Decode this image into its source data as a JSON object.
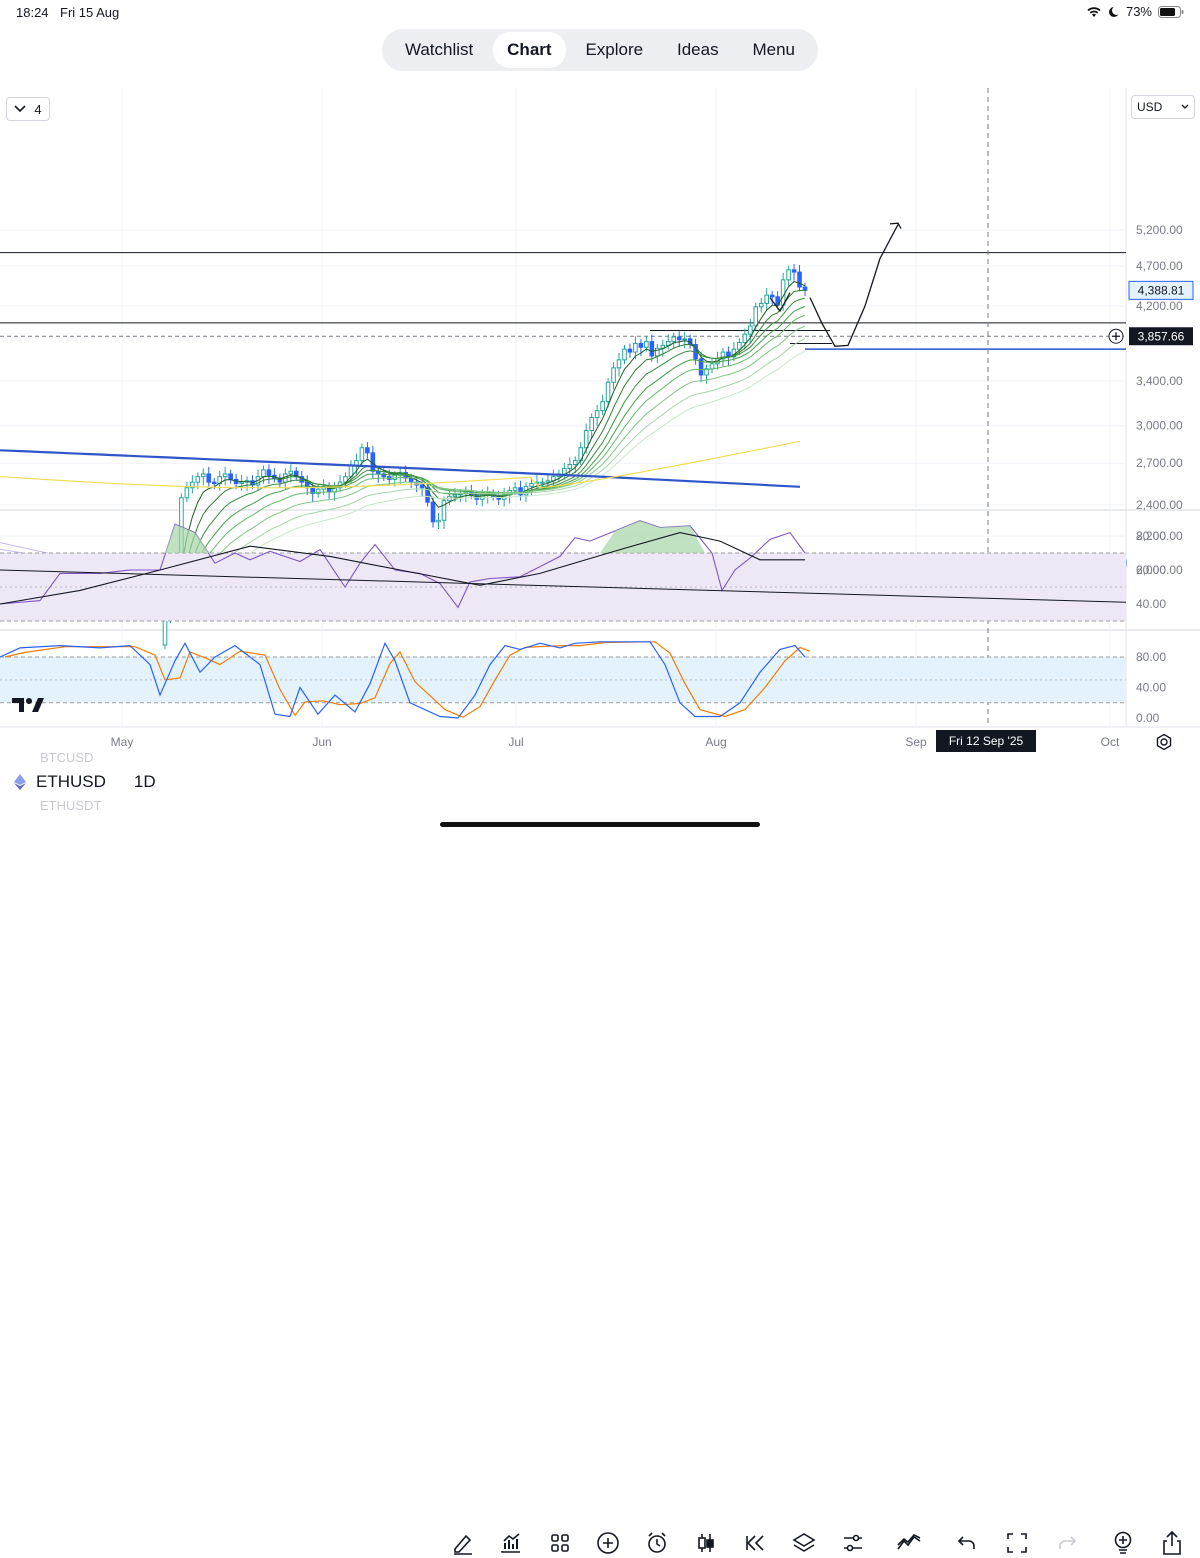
{
  "status_bar": {
    "time": "18:24",
    "date": "Fri 15 Aug",
    "battery": "73%"
  },
  "nav": {
    "tabs": [
      {
        "label": "Watchlist",
        "active": false
      },
      {
        "label": "Chart",
        "active": true
      },
      {
        "label": "Explore",
        "active": false
      },
      {
        "label": "Ideas",
        "active": false
      },
      {
        "label": "Menu",
        "active": false
      }
    ]
  },
  "chart_header": {
    "collapse_count": "4",
    "currency": "USD"
  },
  "chart_data": {
    "type": "candlestick",
    "symbol": "ETHUSD",
    "interval": "1D",
    "price_axis": {
      "scale": "log",
      "ticks": [
        "5,200.00",
        "4,700.00",
        "4,200.00",
        "3,400.00",
        "3,000.00",
        "2,700.00",
        "2,400.00",
        "2,200.00",
        "2,000.00"
      ]
    },
    "price_labels": {
      "last_price": "4,388.81",
      "crosshair_price": "3,857.66"
    },
    "time_axis": {
      "ticks": [
        "May",
        "Jun",
        "Jul",
        "Aug",
        "Sep",
        "Oct"
      ],
      "crosshair_date": "Fri 12 Sep '25"
    },
    "candles_close": [
      1750,
      1790,
      1830,
      2450,
      2520,
      2560,
      2600,
      2620,
      2560,
      2550,
      2600,
      2620,
      2580,
      2550,
      2560,
      2570,
      2540,
      2600,
      2650,
      2610,
      2590,
      2560,
      2620,
      2640,
      2600,
      2560,
      2520,
      2480,
      2510,
      2530,
      2490,
      2520,
      2560,
      2600,
      2680,
      2720,
      2820,
      2780,
      2640,
      2620,
      2600,
      2580,
      2610,
      2630,
      2590,
      2560,
      2540,
      2520,
      2420,
      2290,
      2300,
      2430,
      2460,
      2470,
      2480,
      2490,
      2470,
      2440,
      2470,
      2480,
      2460,
      2440,
      2470,
      2500,
      2520,
      2470,
      2530,
      2550,
      2560,
      2560,
      2570,
      2600,
      2620,
      2660,
      2690,
      2720,
      2820,
      2960,
      3070,
      3130,
      3210,
      3390,
      3530,
      3610,
      3720,
      3690,
      3780,
      3740,
      3800,
      3650,
      3730,
      3760,
      3800,
      3850,
      3820,
      3830,
      3770,
      3620,
      3460,
      3520,
      3570,
      3620,
      3690,
      3640,
      3720,
      3790,
      3880,
      3970,
      4190,
      4230,
      4330,
      4310,
      4210,
      4520,
      4650,
      4620,
      4430,
      4388.81
    ],
    "ma_200": {
      "start": 2800,
      "min": 2600,
      "end": 2525
    },
    "ema_ribbon_top": 3980,
    "rsi": {
      "ticks": [
        "80.00",
        "60.00",
        "40.00"
      ],
      "upper": 70,
      "lower": 30
    },
    "stoch_rsi": {
      "ticks": [
        "80.00",
        "40.00",
        "0.00"
      ],
      "upper": 80,
      "lower": 20
    },
    "horizontal_levels": [
      4880,
      4005,
      3857.66,
      3720,
      2040
    ]
  },
  "bottom_bar": {
    "symbol": "ETHUSD",
    "interval": "1D",
    "ghost_above": "BTCUSD",
    "ghost_below": "ETHUSDT"
  },
  "toolbar_icons": [
    "drawing-icon",
    "indicators-icon",
    "layouts-icon",
    "add-icon",
    "alert-icon",
    "candle-type-icon",
    "replay-icon",
    "layers-icon",
    "settings-sliders-icon",
    "compare-icon",
    "undo-icon",
    "fullscreen-icon",
    "redo-icon",
    "idea-icon",
    "share-icon"
  ],
  "colors": {
    "up": "#26a69a",
    "down": "#2962ff",
    "ma200": "#2f55c8",
    "yellow_ma": "#f2dc55",
    "rsi_band": "#ede7f6",
    "stoch_band": "#e3f2fd",
    "stoch_k": "#2962ff",
    "stoch_d": "#f57c00"
  }
}
